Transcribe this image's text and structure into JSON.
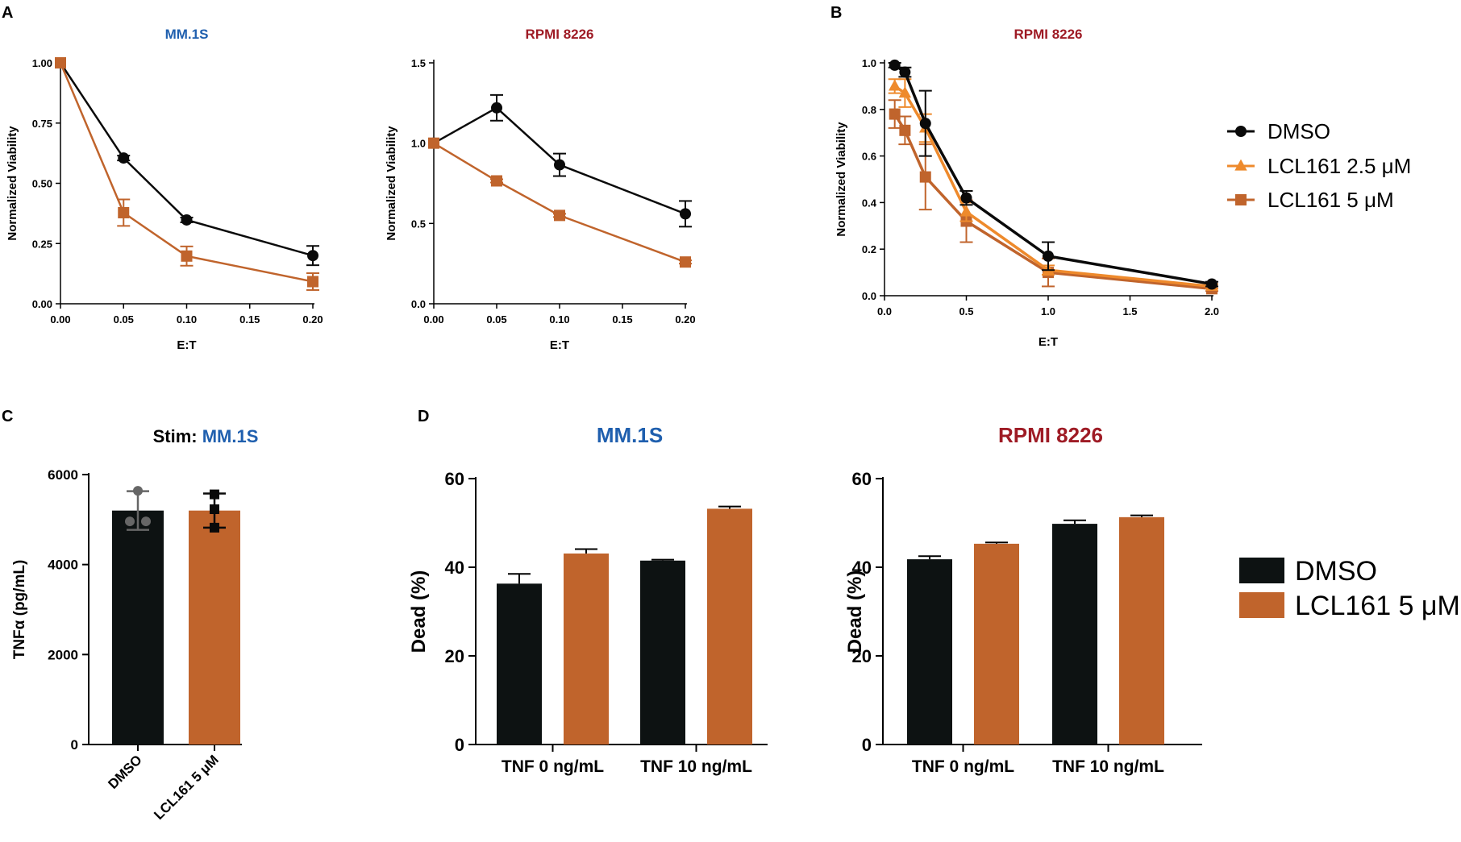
{
  "colors": {
    "black": "#0a0a0a",
    "dmso_bar": "#0d1212",
    "orange": "#c0642c",
    "orange_light": "#ee8a2c",
    "blue": "#1f5fae",
    "red": "#9e1b25",
    "gray": "#666666"
  },
  "panel_labels": [
    "A",
    "B",
    "C",
    "D"
  ],
  "legend_B": {
    "entries": [
      {
        "label": "DMSO",
        "marker": "circle",
        "color": "#0a0a0a"
      },
      {
        "label": "LCL161 2.5 μM",
        "marker": "triangle",
        "color": "#ee8a2c"
      },
      {
        "label": "LCL161 5 μM",
        "marker": "square",
        "color": "#c0642c"
      }
    ]
  },
  "legend_D": {
    "entries": [
      {
        "label": "DMSO",
        "color": "#0d1212"
      },
      {
        "label": "LCL161 5 μM",
        "color": "#c0642c"
      }
    ]
  },
  "panelC": {
    "title_prefix": "Stim: ",
    "title_cell": "MM.1S"
  },
  "chart_data": [
    {
      "id": "A1",
      "type": "line",
      "title": "MM.1S",
      "title_color": "#1f5fae",
      "xlabel": "E:T",
      "ylabel": "Normalized Viability",
      "xlim": [
        0,
        0.2
      ],
      "ylim": [
        0,
        1
      ],
      "xticks": [
        0,
        0.05,
        0.1,
        0.15,
        0.2
      ],
      "xtick_labels": [
        "0.00",
        "0.05",
        "0.10",
        "0.15",
        "0.20"
      ],
      "yticks": [
        0,
        0.25,
        0.5,
        0.75,
        1
      ],
      "ytick_labels": [
        "0.00",
        "0.25",
        "0.50",
        "0.75",
        "1.00"
      ],
      "series": [
        {
          "name": "DMSO",
          "marker": "circle",
          "color": "#0a0a0a",
          "x": [
            0,
            0.05,
            0.1,
            0.2
          ],
          "y": [
            1.0,
            0.605,
            0.348,
            0.2
          ],
          "err": [
            0,
            0.01,
            0.01,
            0.04
          ]
        },
        {
          "name": "LCL161 5 μM",
          "marker": "square",
          "color": "#c0642c",
          "x": [
            0,
            0.05,
            0.1,
            0.2
          ],
          "y": [
            1.0,
            0.378,
            0.198,
            0.092
          ],
          "err": [
            0,
            0.055,
            0.04,
            0.035
          ]
        }
      ]
    },
    {
      "id": "A2",
      "type": "line",
      "title": "RPMI 8226",
      "title_color": "#9e1b25",
      "xlabel": "E:T",
      "ylabel": "Normalized Viability",
      "xlim": [
        0,
        0.2
      ],
      "ylim": [
        0,
        1.5
      ],
      "xticks": [
        0,
        0.05,
        0.1,
        0.15,
        0.2
      ],
      "xtick_labels": [
        "0.00",
        "0.05",
        "0.10",
        "0.15",
        "0.20"
      ],
      "yticks": [
        0,
        0.5,
        1,
        1.5
      ],
      "ytick_labels": [
        "0.0",
        "0.5",
        "1.0",
        "1.5"
      ],
      "series": [
        {
          "name": "DMSO",
          "marker": "circle",
          "color": "#0a0a0a",
          "x": [
            0,
            0.05,
            0.1,
            0.2
          ],
          "y": [
            1.0,
            1.22,
            0.865,
            0.56
          ],
          "err": [
            0,
            0.08,
            0.07,
            0.08
          ]
        },
        {
          "name": "LCL161 5 μM",
          "marker": "square",
          "color": "#c0642c",
          "x": [
            0,
            0.05,
            0.1,
            0.2
          ],
          "y": [
            1.0,
            0.765,
            0.55,
            0.26
          ],
          "err": [
            0,
            0.01,
            0.01,
            0.01
          ]
        }
      ]
    },
    {
      "id": "B",
      "type": "line",
      "title": "RPMI 8226",
      "title_color": "#9e1b25",
      "xlabel": "E:T",
      "ylabel": "Normalized Viability",
      "xlim": [
        0,
        2
      ],
      "ylim": [
        0,
        1
      ],
      "xticks": [
        0,
        0.5,
        1,
        1.5,
        2
      ],
      "xtick_labels": [
        "0.0",
        "0.5",
        "1.0",
        "1.5",
        "2.0"
      ],
      "yticks": [
        0,
        0.2,
        0.4,
        0.6,
        0.8,
        1
      ],
      "ytick_labels": [
        "0.0",
        "0.2",
        "0.4",
        "0.6",
        "0.8",
        "1.0"
      ],
      "series": [
        {
          "name": "LCL161 5 μM",
          "marker": "square",
          "color": "#c0642c",
          "x": [
            0.0625,
            0.125,
            0.25,
            0.5,
            1,
            2
          ],
          "y": [
            0.78,
            0.71,
            0.51,
            0.32,
            0.1,
            0.03
          ],
          "err": [
            0.06,
            0.06,
            0.14,
            0.09,
            0.06,
            0.01
          ]
        },
        {
          "name": "LCL161 2.5 μM",
          "marker": "triangle",
          "color": "#ee8a2c",
          "x": [
            0.0625,
            0.125,
            0.25,
            0.5,
            1,
            2
          ],
          "y": [
            0.9,
            0.87,
            0.72,
            0.36,
            0.11,
            0.04
          ],
          "err": [
            0.03,
            0.06,
            0.06,
            0.04,
            0.02,
            0.01
          ]
        },
        {
          "name": "DMSO",
          "marker": "circle",
          "color": "#0a0a0a",
          "x": [
            0.0625,
            0.125,
            0.25,
            0.5,
            1,
            2
          ],
          "y": [
            0.99,
            0.96,
            0.74,
            0.42,
            0.17,
            0.05
          ],
          "err": [
            0.01,
            0.02,
            0.14,
            0.03,
            0.06,
            0.01
          ]
        }
      ]
    },
    {
      "id": "C",
      "type": "bar",
      "ylabel": "TNFα (pg/mL)",
      "ylim": [
        0,
        6000
      ],
      "yticks": [
        0,
        2000,
        4000,
        6000
      ],
      "ytick_labels": [
        "0",
        "2000",
        "4000",
        "6000"
      ],
      "categories": [
        "DMSO",
        "LCL161 5 μM"
      ],
      "values": [
        5200,
        5200
      ],
      "errors": [
        430,
        380
      ],
      "colors": [
        "#0d1212",
        "#c0642c"
      ],
      "points": [
        [
          5640,
          4960,
          4960
        ],
        [
          5560,
          5230,
          4820
        ]
      ],
      "point_markers": [
        "circle",
        "square"
      ],
      "point_colors": [
        "#666666",
        "#0a0a0a"
      ]
    },
    {
      "id": "D1",
      "type": "bar",
      "title": "MM.1S",
      "title_color": "#1f5fae",
      "ylabel": "Dead (%)",
      "ylim": [
        0,
        60
      ],
      "yticks": [
        0,
        20,
        40,
        60
      ],
      "ytick_labels": [
        "0",
        "20",
        "40",
        "60"
      ],
      "categories": [
        "TNF 0 ng/mL",
        "TNF 10 ng/mL"
      ],
      "series": [
        {
          "name": "DMSO",
          "color": "#0d1212",
          "values": [
            36.3,
            41.5
          ],
          "errors": [
            2.2,
            0.2
          ]
        },
        {
          "name": "LCL161 5 μM",
          "color": "#c0642c",
          "values": [
            43.1,
            53.2
          ],
          "errors": [
            1.0,
            0.5
          ]
        }
      ]
    },
    {
      "id": "D2",
      "type": "bar",
      "title": "RPMI 8226",
      "title_color": "#9e1b25",
      "ylabel": "Dead (%)",
      "ylim": [
        0,
        60
      ],
      "yticks": [
        0,
        20,
        40,
        60
      ],
      "ytick_labels": [
        "0",
        "20",
        "40",
        "60"
      ],
      "categories": [
        "TNF 0 ng/mL",
        "TNF 10 ng/mL"
      ],
      "series": [
        {
          "name": "DMSO",
          "color": "#0d1212",
          "values": [
            41.8,
            49.8
          ],
          "errors": [
            0.7,
            0.8
          ]
        },
        {
          "name": "LCL161 5 μM",
          "color": "#c0642c",
          "values": [
            45.3,
            51.3
          ],
          "errors": [
            0.3,
            0.4
          ]
        }
      ]
    }
  ]
}
